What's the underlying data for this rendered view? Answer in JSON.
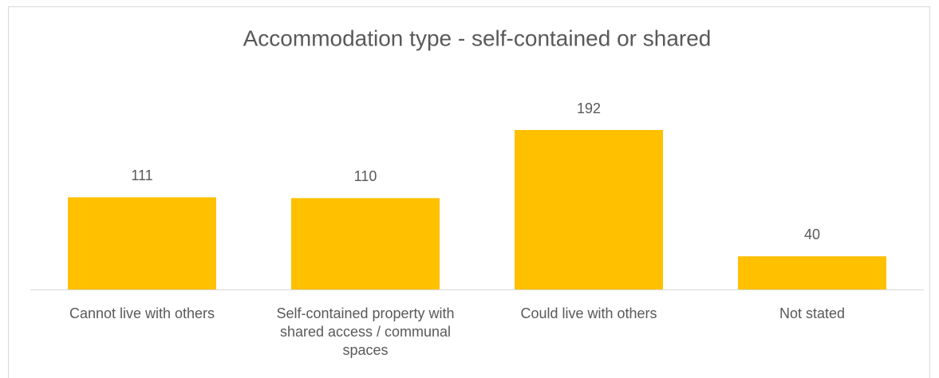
{
  "chart_data": {
    "type": "bar",
    "title": "Accommodation type - self-contained or shared",
    "categories": [
      "Cannot live with others",
      "Self-contained property with shared access / communal spaces",
      "Could live with others",
      "Not stated"
    ],
    "values": [
      111,
      110,
      192,
      40
    ],
    "color": "#ffc000"
  }
}
